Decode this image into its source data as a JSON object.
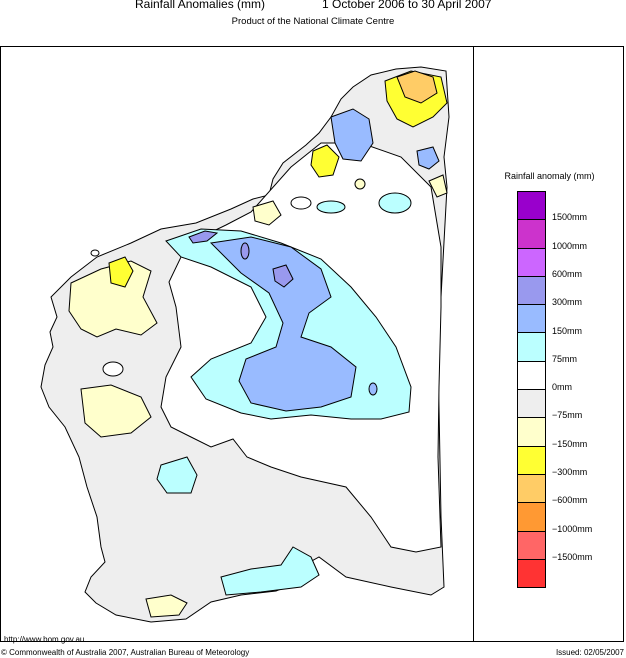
{
  "header": {
    "title": "Rainfall Anomalies (mm)",
    "period": "1 October 2006 to 30 April 2007",
    "subtitle": "Product of the National Climate Centre"
  },
  "legend": {
    "title": "Rainfall anomaly (mm)",
    "classes": [
      {
        "color": "#9900cc"
      },
      {
        "color": "#cc33cc"
      },
      {
        "color": "#cc66ff"
      },
      {
        "color": "#9999ee"
      },
      {
        "color": "#99bbff"
      },
      {
        "color": "#bbffff"
      },
      {
        "color": "#ffffff"
      },
      {
        "color": "#eeeeee"
      },
      {
        "color": "#ffffcc"
      },
      {
        "color": "#ffff33"
      },
      {
        "color": "#ffcc66"
      },
      {
        "color": "#ff9933"
      },
      {
        "color": "#ff6666"
      },
      {
        "color": "#ff3333"
      }
    ],
    "labels": [
      "1500mm",
      "1000mm",
      "600mm",
      "300mm",
      "150mm",
      "75mm",
      "0mm",
      "−75mm",
      "−150mm",
      "−300mm",
      "−600mm",
      "−1000mm",
      "−1500mm"
    ]
  },
  "footer": {
    "url": "http://www.bom.gov.au",
    "copyright": "© Commonwealth of Australia 2007, Australian Bureau of Meteorology",
    "issued": "Issued: 02/05/2007"
  }
}
